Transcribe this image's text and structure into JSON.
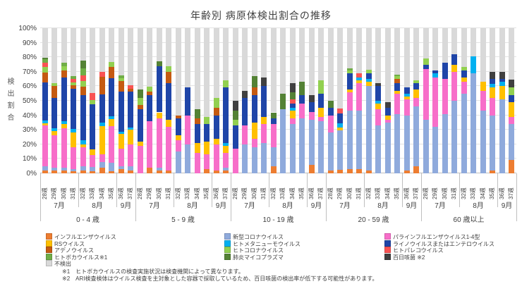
{
  "page_background": "#FFFFFF",
  "chart_data": {
    "type": "bar",
    "subtype": "stacked-percent",
    "title": "年齢別 病原体検出割合の推移",
    "ylabel": "検出割合",
    "ylim": [
      0,
      100
    ],
    "grid": true,
    "y_ticks": [
      "0%",
      "10%",
      "20%",
      "30%",
      "40%",
      "50%",
      "60%",
      "70%",
      "80%",
      "90%",
      "100%"
    ],
    "weeks": [
      "28週",
      "29週",
      "30週",
      "31週",
      "32週",
      "33週",
      "34週",
      "35週",
      "36週",
      "37週"
    ],
    "months": [
      {
        "label": "7月",
        "span": 4
      },
      {
        "label": "8月",
        "span": 4
      },
      {
        "label": "9月",
        "span": 2
      }
    ],
    "series": [
      {
        "key": "influenza",
        "label": "インフルエンザウイルス",
        "color": "#ED7D31"
      },
      {
        "key": "covid19",
        "label": "新型コロナウイルス",
        "color": "#8FAADC"
      },
      {
        "key": "parainfluenza",
        "label": "パラインフルエンザウイルス1-4型",
        "color": "#F76EC9"
      },
      {
        "key": "rsv",
        "label": "RSウイルス",
        "color": "#FFC000"
      },
      {
        "key": "hmpv",
        "label": "ヒトメタニューモウイルス",
        "color": "#00B0F0"
      },
      {
        "key": "rhino-entero",
        "label": "ライノウイルスまたはエンテロウイルス",
        "color": "#1F45A8"
      },
      {
        "key": "adeno",
        "label": "アデノウイルス",
        "color": "#C55A11"
      },
      {
        "key": "hcov",
        "label": "ヒトコロナウイルス",
        "color": "#92D050"
      },
      {
        "key": "parecho",
        "label": "ヒトパレコウイルス",
        "color": "#F95353"
      },
      {
        "key": "boca",
        "label": "ヒトボカウイルス",
        "color": "#70AD47"
      },
      {
        "key": "mycoplasma",
        "label": "肺炎マイコプラズマ",
        "color": "#548235"
      },
      {
        "key": "pertussis",
        "label": "百日咳菌",
        "color": "#404040"
      },
      {
        "key": "not-detected",
        "label": "不検出",
        "color": "#D9D9D9"
      }
    ],
    "groups": [
      {
        "label": "0 - 4 歳",
        "values": [
          [
            2,
            3,
            28,
            1.5,
            2,
            26,
            7,
            4,
            2.5,
            2.5,
            1,
            0,
            20.5
          ],
          [
            2,
            2,
            22,
            3,
            2,
            21,
            8,
            2,
            0,
            0,
            0,
            0,
            38
          ],
          [
            2,
            2,
            27,
            3,
            2,
            30,
            5,
            3,
            0,
            2,
            0,
            0,
            24
          ],
          [
            1.5,
            1.5,
            15,
            10,
            2.5,
            28,
            2,
            2,
            2.5,
            2,
            0,
            0,
            33
          ],
          [
            2,
            3,
            13,
            2,
            3,
            31,
            5.5,
            4,
            4,
            5,
            5,
            0,
            22.5
          ],
          [
            1.5,
            3,
            8,
            4,
            0,
            31,
            0,
            3,
            5,
            0,
            0,
            0,
            44.5
          ],
          [
            4,
            4,
            5,
            19.5,
            2.5,
            19.5,
            12,
            0,
            3.5,
            0,
            0,
            0,
            30
          ],
          [
            1.5,
            6,
            25,
            5,
            2,
            26,
            8,
            3,
            0,
            0,
            0,
            0,
            23.5
          ],
          [
            3,
            2,
            12,
            10,
            1.5,
            28,
            7,
            2,
            0,
            2,
            0,
            0,
            32.5
          ],
          [
            2,
            3,
            15,
            10,
            1.5,
            25,
            2,
            0,
            2,
            0,
            0,
            0,
            39.5
          ]
        ]
      },
      {
        "label": "5 - 9 歳",
        "values": [
          [
            0,
            0,
            19,
            3,
            0,
            22,
            3,
            5,
            0,
            0,
            6,
            0,
            42
          ],
          [
            4,
            0,
            32,
            0,
            0,
            18,
            2.5,
            3,
            0,
            0,
            0,
            0,
            40.5
          ],
          [
            2,
            2,
            34,
            4,
            0,
            32,
            0,
            0,
            0,
            0,
            3,
            0,
            23
          ],
          [
            2,
            0,
            30,
            5,
            0,
            25,
            8,
            4,
            0,
            0,
            0,
            0,
            26
          ],
          [
            0,
            15,
            8,
            3,
            0,
            12,
            2,
            0,
            0,
            0,
            0,
            0,
            60
          ],
          [
            0,
            20,
            20,
            0,
            0,
            19,
            0,
            0,
            0,
            0,
            0,
            0,
            41
          ],
          [
            0,
            0,
            14,
            7,
            0,
            13,
            4,
            0,
            0,
            0,
            6,
            0,
            56
          ],
          [
            3,
            0,
            10,
            9,
            0,
            12,
            0,
            5,
            0,
            0,
            0,
            0,
            61
          ],
          [
            2,
            0,
            18,
            4,
            0,
            16,
            5,
            7,
            0,
            0,
            0,
            0,
            48
          ],
          [
            2,
            2,
            10,
            5,
            2,
            38,
            0,
            5,
            0,
            0,
            0,
            0,
            36
          ]
        ]
      },
      {
        "label": "10 - 19 歳",
        "values": [
          [
            0,
            0,
            17,
            0,
            0,
            16,
            0,
            4,
            0,
            0,
            6,
            7,
            50
          ],
          [
            0,
            20,
            13,
            0,
            0,
            19,
            0,
            0,
            0,
            0,
            0,
            5,
            43
          ],
          [
            0,
            18,
            6,
            11,
            0,
            19,
            5,
            0,
            0,
            0,
            8,
            0,
            33
          ],
          [
            0,
            21,
            13,
            5,
            0,
            21,
            0,
            0,
            0,
            0,
            0,
            6,
            34
          ],
          [
            5,
            13,
            16,
            0,
            0,
            4,
            0,
            0,
            0,
            0,
            4,
            0,
            58
          ],
          [
            0,
            44,
            0,
            0,
            0,
            0,
            0,
            0,
            0,
            0,
            11,
            0,
            45
          ],
          [
            0,
            34,
            4,
            5,
            2,
            3,
            0,
            0,
            3,
            0,
            5,
            6,
            38
          ],
          [
            0,
            38,
            10,
            0,
            0,
            6,
            0,
            0,
            0,
            0,
            9,
            0,
            37
          ],
          [
            6,
            31,
            5,
            0,
            0,
            7,
            0,
            0,
            0,
            0,
            0,
            5,
            46
          ],
          [
            0,
            36,
            3,
            6,
            0,
            10,
            0,
            9,
            0,
            0,
            0,
            0,
            36
          ]
        ]
      },
      {
        "label": "20 - 59 歳",
        "values": [
          [
            2,
            26,
            12,
            0,
            0,
            5,
            0,
            0,
            0,
            0,
            5,
            0,
            50
          ],
          [
            2.5,
            27,
            0,
            2,
            3,
            7,
            0,
            0,
            3,
            0,
            0,
            0,
            55.5
          ],
          [
            3,
            40,
            13,
            2,
            0,
            11,
            0,
            2,
            0,
            1.5,
            0,
            0,
            27.5
          ],
          [
            3,
            40,
            19,
            2,
            2,
            0,
            0,
            0,
            3,
            0,
            0,
            0,
            31
          ],
          [
            2,
            58,
            0,
            3,
            2,
            4,
            0,
            2.5,
            0,
            0,
            0,
            0,
            28.5
          ],
          [
            0,
            33,
            11,
            4,
            2,
            10,
            0,
            0,
            0,
            0,
            0,
            2,
            38
          ],
          [
            0,
            35,
            2,
            3,
            0,
            5,
            0,
            0,
            0,
            0,
            0,
            4,
            51
          ],
          [
            0,
            41,
            14,
            2,
            0,
            5,
            3,
            2,
            0,
            1,
            0,
            0,
            32
          ],
          [
            2,
            38,
            11,
            2,
            2,
            4,
            0,
            0,
            0,
            0,
            0,
            0,
            41
          ],
          [
            5,
            41,
            6,
            6,
            0,
            4,
            0,
            2,
            0,
            0,
            0,
            0,
            36
          ]
        ]
      },
      {
        "label": "60 歳以上",
        "values": [
          [
            0,
            37,
            35,
            0,
            0,
            3,
            0,
            4,
            0,
            0,
            0,
            0,
            21
          ],
          [
            0,
            32,
            34,
            0,
            3,
            2,
            0,
            0,
            0,
            0,
            0,
            0,
            29
          ],
          [
            0,
            41,
            24,
            0,
            0,
            11,
            0,
            0,
            0,
            0,
            0,
            0,
            24
          ],
          [
            0,
            50,
            20,
            5,
            0,
            7,
            0,
            0,
            0,
            0,
            0,
            0,
            18
          ],
          [
            0,
            55,
            8,
            3,
            0,
            5,
            0,
            2.5,
            0,
            0,
            0,
            0,
            26.5
          ],
          [
            0,
            69,
            0,
            0,
            11.5,
            0,
            0,
            0,
            0,
            0,
            0,
            0,
            19.5
          ],
          [
            0,
            43,
            14,
            6,
            0,
            0,
            0,
            0,
            0,
            0,
            0,
            0,
            37
          ],
          [
            2,
            38,
            12,
            7,
            2.5,
            3.5,
            0,
            0,
            0,
            0,
            0,
            5,
            30
          ],
          [
            0,
            51,
            0,
            9,
            3,
            2,
            0,
            0,
            0,
            0,
            0,
            5,
            30
          ],
          [
            9,
            25,
            5,
            10,
            0,
            5,
            0,
            5,
            0,
            0,
            0,
            5.5,
            35.5
          ]
        ]
      }
    ],
    "legend_columns": [
      [
        {
          "text": "インフルエンザウイルス",
          "series": 0
        },
        {
          "text": "RSウイルス",
          "series": 3
        },
        {
          "text": "アデノウイルス",
          "series": 6
        },
        {
          "text": "ヒトボカウイルス※1",
          "series": 9
        },
        {
          "text": "不検出",
          "series": 12
        }
      ],
      [
        {
          "text": "新型コロナウイルス",
          "series": 1
        },
        {
          "text": "ヒトメタニューモウイルス",
          "series": 4
        },
        {
          "text": "ヒトコロナウイルス",
          "series": 7
        },
        {
          "text": "肺炎マイコプラズマ",
          "series": 10
        }
      ],
      [
        {
          "text": "パラインフルエンザウイルス1-4型",
          "series": 2
        },
        {
          "text": "ライノウイルスまたはエンテロウイルス",
          "series": 5
        },
        {
          "text": "ヒトパレコウイルス",
          "series": 8
        },
        {
          "text": "百日咳菌 ※2",
          "series": 11
        }
      ]
    ]
  },
  "footnotes": {
    "line1": "※1　ヒトボカウイルスの検査実施状況は検査機関によって異なります。",
    "line2": "※2　ARI検査検体はウイルス検査を主対象とした容器で採取しているため、百日咳菌の検出率が低下する可能性があります。"
  }
}
